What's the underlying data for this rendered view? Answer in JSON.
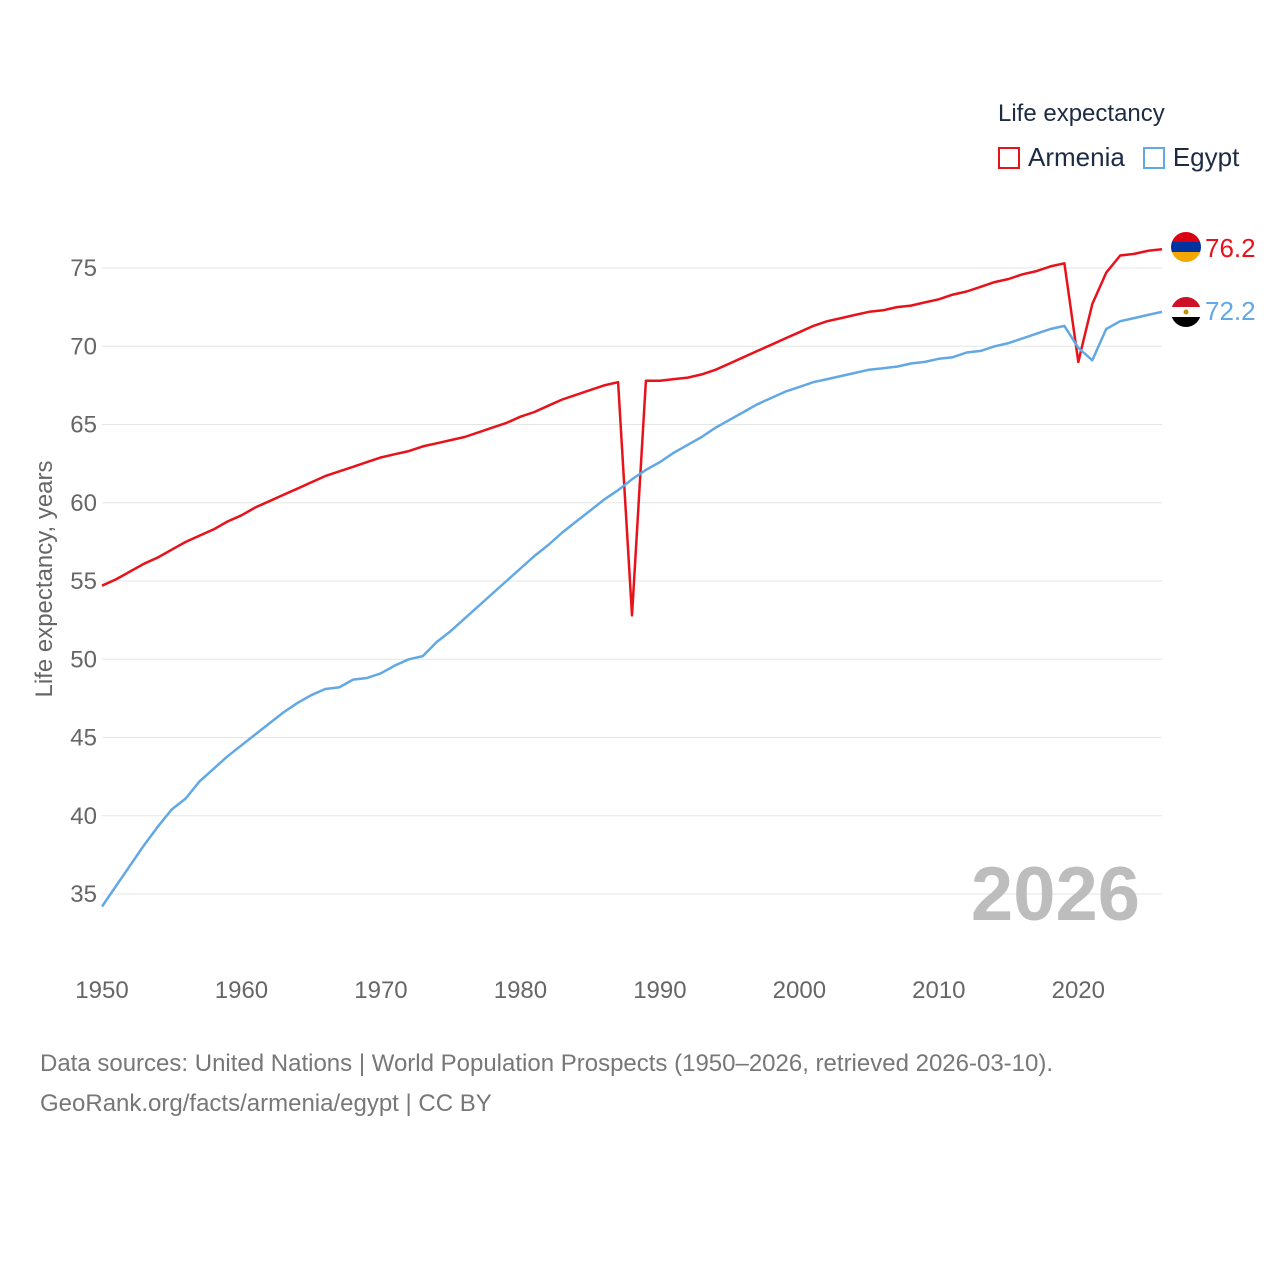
{
  "legend": {
    "title": "Life expectancy",
    "items": [
      {
        "label": "Armenia",
        "color": "#e8121b"
      },
      {
        "label": "Egypt",
        "color": "#62a8e5"
      }
    ]
  },
  "year_label": "2026",
  "source": {
    "line1": "Data sources: United Nations | World Population Prospects (1950–2026, retrieved 2026-03-10).",
    "line2": "GeoRank.org/facts/armenia/egypt | CC BY"
  },
  "colors": {
    "armenia": "#e8121b",
    "egypt": "#62a8e5",
    "grid": "#e6e6e6",
    "axis_text": "#666666"
  },
  "chart_data": {
    "type": "line",
    "title": "Life expectancy",
    "xlabel": "",
    "ylabel": "Life expectancy, years",
    "xlim": [
      1950,
      2026
    ],
    "ylim": [
      33,
      78
    ],
    "x_ticks": [
      1950,
      1960,
      1970,
      1980,
      1990,
      2000,
      2010,
      2020
    ],
    "y_ticks": [
      35,
      40,
      45,
      50,
      55,
      60,
      65,
      70,
      75
    ],
    "grid": true,
    "legend_position": "top-right",
    "series": [
      {
        "name": "Armenia",
        "color": "#e8121b",
        "end_label": "76.2",
        "points": [
          [
            1950,
            54.7
          ],
          [
            1951,
            55.1
          ],
          [
            1952,
            55.6
          ],
          [
            1953,
            56.1
          ],
          [
            1954,
            56.5
          ],
          [
            1955,
            57.0
          ],
          [
            1956,
            57.5
          ],
          [
            1957,
            57.9
          ],
          [
            1958,
            58.3
          ],
          [
            1959,
            58.8
          ],
          [
            1960,
            59.2
          ],
          [
            1961,
            59.7
          ],
          [
            1962,
            60.1
          ],
          [
            1963,
            60.5
          ],
          [
            1964,
            60.9
          ],
          [
            1965,
            61.3
          ],
          [
            1966,
            61.7
          ],
          [
            1967,
            62.0
          ],
          [
            1968,
            62.3
          ],
          [
            1969,
            62.6
          ],
          [
            1970,
            62.9
          ],
          [
            1971,
            63.1
          ],
          [
            1972,
            63.3
          ],
          [
            1973,
            63.6
          ],
          [
            1974,
            63.8
          ],
          [
            1975,
            64.0
          ],
          [
            1976,
            64.2
          ],
          [
            1977,
            64.5
          ],
          [
            1978,
            64.8
          ],
          [
            1979,
            65.1
          ],
          [
            1980,
            65.5
          ],
          [
            1981,
            65.8
          ],
          [
            1982,
            66.2
          ],
          [
            1983,
            66.6
          ],
          [
            1984,
            66.9
          ],
          [
            1985,
            67.2
          ],
          [
            1986,
            67.5
          ],
          [
            1987,
            67.7
          ],
          [
            1988,
            52.8
          ],
          [
            1989,
            67.8
          ],
          [
            1990,
            67.8
          ],
          [
            1991,
            67.9
          ],
          [
            1992,
            68.0
          ],
          [
            1993,
            68.2
          ],
          [
            1994,
            68.5
          ],
          [
            1995,
            68.9
          ],
          [
            1996,
            69.3
          ],
          [
            1997,
            69.7
          ],
          [
            1998,
            70.1
          ],
          [
            1999,
            70.5
          ],
          [
            2000,
            70.9
          ],
          [
            2001,
            71.3
          ],
          [
            2002,
            71.6
          ],
          [
            2003,
            71.8
          ],
          [
            2004,
            72.0
          ],
          [
            2005,
            72.2
          ],
          [
            2006,
            72.3
          ],
          [
            2007,
            72.5
          ],
          [
            2008,
            72.6
          ],
          [
            2009,
            72.8
          ],
          [
            2010,
            73.0
          ],
          [
            2011,
            73.3
          ],
          [
            2012,
            73.5
          ],
          [
            2013,
            73.8
          ],
          [
            2014,
            74.1
          ],
          [
            2015,
            74.3
          ],
          [
            2016,
            74.6
          ],
          [
            2017,
            74.8
          ],
          [
            2018,
            75.1
          ],
          [
            2019,
            75.3
          ],
          [
            2020,
            69.0
          ],
          [
            2021,
            72.7
          ],
          [
            2022,
            74.7
          ],
          [
            2023,
            75.8
          ],
          [
            2024,
            75.9
          ],
          [
            2025,
            76.1
          ],
          [
            2026,
            76.2
          ]
        ]
      },
      {
        "name": "Egypt",
        "color": "#62a8e5",
        "end_label": "72.2",
        "points": [
          [
            1950,
            34.2
          ],
          [
            1951,
            35.5
          ],
          [
            1952,
            36.8
          ],
          [
            1953,
            38.1
          ],
          [
            1954,
            39.3
          ],
          [
            1955,
            40.4
          ],
          [
            1956,
            41.1
          ],
          [
            1957,
            42.2
          ],
          [
            1958,
            43.0
          ],
          [
            1959,
            43.8
          ],
          [
            1960,
            44.5
          ],
          [
            1961,
            45.2
          ],
          [
            1962,
            45.9
          ],
          [
            1963,
            46.6
          ],
          [
            1964,
            47.2
          ],
          [
            1965,
            47.7
          ],
          [
            1966,
            48.1
          ],
          [
            1967,
            48.2
          ],
          [
            1968,
            48.7
          ],
          [
            1969,
            48.8
          ],
          [
            1970,
            49.1
          ],
          [
            1971,
            49.6
          ],
          [
            1972,
            50.0
          ],
          [
            1973,
            50.2
          ],
          [
            1974,
            51.1
          ],
          [
            1975,
            51.8
          ],
          [
            1976,
            52.6
          ],
          [
            1977,
            53.4
          ],
          [
            1978,
            54.2
          ],
          [
            1979,
            55.0
          ],
          [
            1980,
            55.8
          ],
          [
            1981,
            56.6
          ],
          [
            1982,
            57.3
          ],
          [
            1983,
            58.1
          ],
          [
            1984,
            58.8
          ],
          [
            1985,
            59.5
          ],
          [
            1986,
            60.2
          ],
          [
            1987,
            60.8
          ],
          [
            1988,
            61.5
          ],
          [
            1989,
            62.1
          ],
          [
            1990,
            62.6
          ],
          [
            1991,
            63.2
          ],
          [
            1992,
            63.7
          ],
          [
            1993,
            64.2
          ],
          [
            1994,
            64.8
          ],
          [
            1995,
            65.3
          ],
          [
            1996,
            65.8
          ],
          [
            1997,
            66.3
          ],
          [
            1998,
            66.7
          ],
          [
            1999,
            67.1
          ],
          [
            2000,
            67.4
          ],
          [
            2001,
            67.7
          ],
          [
            2002,
            67.9
          ],
          [
            2003,
            68.1
          ],
          [
            2004,
            68.3
          ],
          [
            2005,
            68.5
          ],
          [
            2006,
            68.6
          ],
          [
            2007,
            68.7
          ],
          [
            2008,
            68.9
          ],
          [
            2009,
            69.0
          ],
          [
            2010,
            69.2
          ],
          [
            2011,
            69.3
          ],
          [
            2012,
            69.6
          ],
          [
            2013,
            69.7
          ],
          [
            2014,
            70.0
          ],
          [
            2015,
            70.2
          ],
          [
            2016,
            70.5
          ],
          [
            2017,
            70.8
          ],
          [
            2018,
            71.1
          ],
          [
            2019,
            71.3
          ],
          [
            2020,
            69.9
          ],
          [
            2021,
            69.1
          ],
          [
            2022,
            71.1
          ],
          [
            2023,
            71.6
          ],
          [
            2024,
            71.8
          ],
          [
            2025,
            72.0
          ],
          [
            2026,
            72.2
          ]
        ]
      }
    ]
  }
}
